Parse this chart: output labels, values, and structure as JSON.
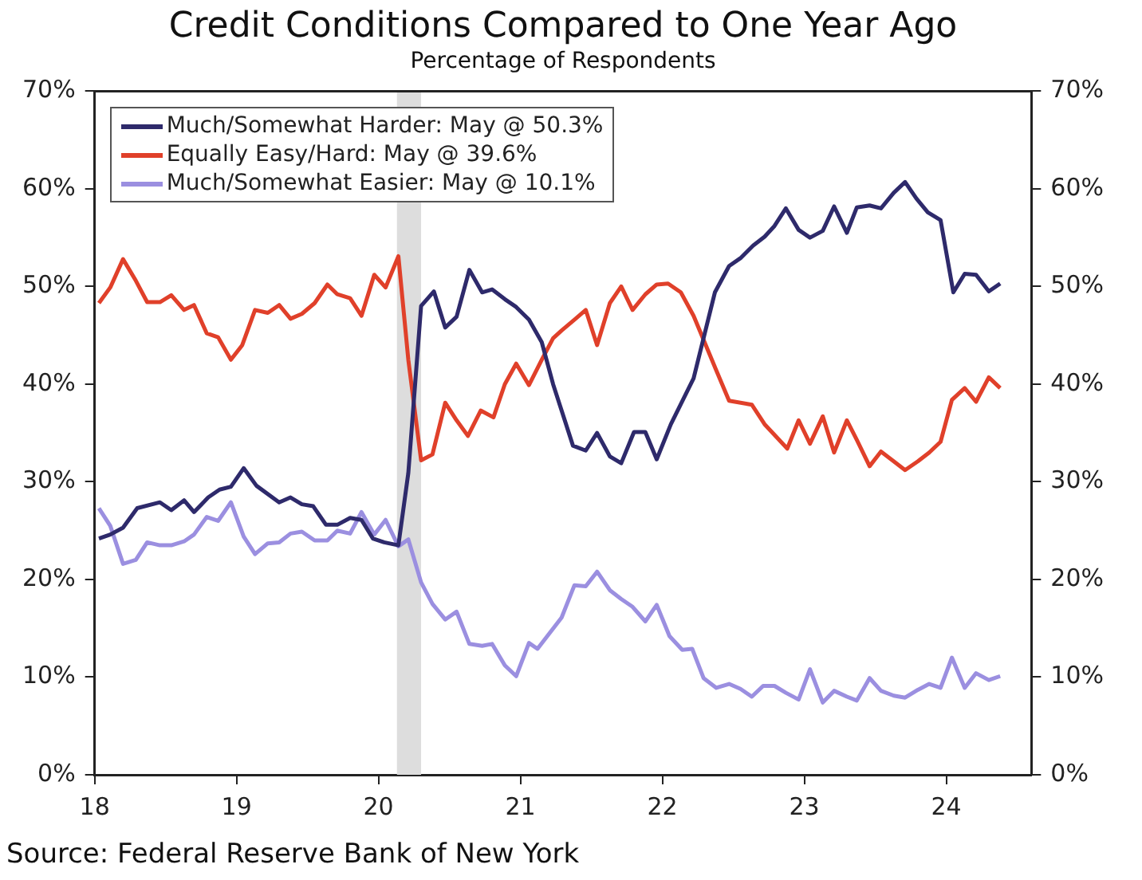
{
  "chart_data": {
    "type": "line",
    "title": "Credit Conditions Compared to One Year Ago",
    "subtitle": "Percentage of Respondents",
    "annotations": [
      "Source: Federal Reserve Bank of New York"
    ],
    "xlim": [
      18,
      24.6
    ],
    "xticks": [
      18,
      19,
      20,
      21,
      22,
      23,
      24
    ],
    "ylim": [
      0,
      70
    ],
    "yticks": [
      {
        "value": 0,
        "label": "0%"
      },
      {
        "value": 10,
        "label": "10%"
      },
      {
        "value": 20,
        "label": "20%"
      },
      {
        "value": 30,
        "label": "30%"
      },
      {
        "value": 40,
        "label": "40%"
      },
      {
        "value": 50,
        "label": "50%"
      },
      {
        "value": 60,
        "label": "60%"
      },
      {
        "value": 70,
        "label": "70%"
      }
    ],
    "y2lim": [
      0,
      70
    ],
    "y2ticks": [
      {
        "value": 0,
        "label": "0%"
      },
      {
        "value": 10,
        "label": "10%"
      },
      {
        "value": 20,
        "label": "20%"
      },
      {
        "value": 30,
        "label": "30%"
      },
      {
        "value": 40,
        "label": "40%"
      },
      {
        "value": 50,
        "label": "50%"
      },
      {
        "value": 60,
        "label": "60%"
      },
      {
        "value": 70,
        "label": "70%"
      }
    ],
    "grid": false,
    "legend": "top left",
    "marker": "none",
    "line_style": "solid",
    "bands": [
      {
        "axis": "x",
        "from": 20.13,
        "to": 20.3,
        "color": "#dddddd"
      }
    ],
    "series": [
      {
        "name": "Much/Somewhat Harder: May @ 50.3%",
        "color": "#2e2a6b",
        "x": [
          18.03,
          18.11,
          18.2,
          18.3,
          18.46,
          18.54,
          18.63,
          18.7,
          18.8,
          18.88,
          18.96,
          19.05,
          19.14,
          19.3,
          19.38,
          19.46,
          19.54,
          19.63,
          19.71,
          19.8,
          19.88,
          19.96,
          20.04,
          20.14,
          20.21,
          20.3,
          20.39,
          20.47,
          20.55,
          20.64,
          20.73,
          20.8,
          20.89,
          20.97,
          21.06,
          21.15,
          21.23,
          21.37,
          21.46,
          21.54,
          21.63,
          21.71,
          21.8,
          21.88,
          21.96,
          22.06,
          22.22,
          22.37,
          22.47,
          22.55,
          22.64,
          22.72,
          22.79,
          22.87,
          22.96,
          23.04,
          23.13,
          23.21,
          23.3,
          23.37,
          23.46,
          23.54,
          23.63,
          23.71,
          23.79,
          23.87,
          23.96,
          24.05,
          24.13,
          24.21,
          24.3,
          24.38
        ],
        "values": [
          24.2,
          24.6,
          25.3,
          27.3,
          27.9,
          27.1,
          28.1,
          26.9,
          28.4,
          29.2,
          29.5,
          31.4,
          29.6,
          27.9,
          28.4,
          27.7,
          27.5,
          25.6,
          25.6,
          26.3,
          26.1,
          24.2,
          23.8,
          23.5,
          30.9,
          48.0,
          49.5,
          45.8,
          46.9,
          51.7,
          49.4,
          49.7,
          48.7,
          47.9,
          46.6,
          44.3,
          40.0,
          33.7,
          33.2,
          35.0,
          32.6,
          31.9,
          35.1,
          35.1,
          32.3,
          35.9,
          40.6,
          49.4,
          52.1,
          52.9,
          54.2,
          55.1,
          56.2,
          58.0,
          55.8,
          55.0,
          55.7,
          58.2,
          55.5,
          58.1,
          58.3,
          58.0,
          59.6,
          60.7,
          59.0,
          57.6,
          56.8,
          49.4,
          51.3,
          51.2,
          49.5,
          50.3
        ]
      },
      {
        "name": "Equally Easy/Hard: May @ 39.6%",
        "color": "#e0402a",
        "x": [
          18.03,
          18.11,
          18.2,
          18.29,
          18.37,
          18.46,
          18.54,
          18.63,
          18.7,
          18.79,
          18.87,
          18.96,
          19.04,
          19.13,
          19.22,
          19.3,
          19.38,
          19.46,
          19.55,
          19.64,
          19.71,
          19.8,
          19.88,
          19.97,
          20.05,
          20.14,
          20.21,
          20.3,
          20.38,
          20.47,
          20.55,
          20.63,
          20.72,
          20.81,
          20.89,
          20.97,
          21.06,
          21.15,
          21.23,
          21.29,
          21.38,
          21.46,
          21.54,
          21.63,
          21.71,
          21.79,
          21.88,
          21.96,
          22.04,
          22.13,
          22.22,
          22.38,
          22.47,
          22.63,
          22.72,
          22.88,
          22.96,
          23.04,
          23.13,
          23.21,
          23.3,
          23.37,
          23.46,
          23.54,
          23.63,
          23.71,
          23.8,
          23.88,
          23.96,
          24.04,
          24.13,
          24.21,
          24.3,
          24.38
        ],
        "values": [
          48.3,
          49.9,
          52.8,
          50.6,
          48.4,
          48.4,
          49.1,
          47.6,
          48.1,
          45.2,
          44.8,
          42.5,
          44.0,
          47.6,
          47.3,
          48.1,
          46.7,
          47.2,
          48.3,
          50.2,
          49.2,
          48.8,
          47.0,
          51.2,
          49.9,
          53.1,
          42.5,
          32.2,
          32.8,
          38.1,
          36.3,
          34.7,
          37.3,
          36.6,
          40.0,
          42.1,
          39.9,
          42.5,
          44.7,
          45.5,
          46.6,
          47.6,
          44.0,
          48.3,
          50.0,
          47.6,
          49.2,
          50.2,
          50.3,
          49.4,
          47.0,
          41.4,
          38.3,
          37.9,
          35.9,
          33.4,
          36.3,
          33.9,
          36.7,
          33.0,
          36.3,
          34.3,
          31.6,
          33.1,
          32.1,
          31.2,
          32.1,
          33.0,
          34.1,
          38.4,
          39.6,
          38.2,
          40.7,
          39.6
        ]
      },
      {
        "name": "Much/Somewhat Easier: May @ 10.1%",
        "color": "#9b8fe0",
        "x": [
          18.03,
          18.11,
          18.2,
          18.29,
          18.37,
          18.46,
          18.54,
          18.63,
          18.7,
          18.79,
          18.87,
          18.96,
          19.05,
          19.13,
          19.22,
          19.3,
          19.38,
          19.46,
          19.55,
          19.64,
          19.71,
          19.8,
          19.88,
          19.97,
          20.05,
          20.14,
          20.21,
          20.3,
          20.38,
          20.47,
          20.55,
          20.64,
          20.73,
          20.8,
          20.89,
          20.97,
          21.06,
          21.12,
          21.29,
          21.38,
          21.46,
          21.54,
          21.63,
          21.71,
          21.79,
          21.88,
          21.96,
          22.05,
          22.14,
          22.21,
          22.29,
          22.38,
          22.47,
          22.55,
          22.63,
          22.71,
          22.79,
          22.87,
          22.96,
          23.04,
          23.13,
          23.21,
          23.3,
          23.37,
          23.46,
          23.54,
          23.63,
          23.71,
          23.8,
          23.88,
          23.96,
          24.04,
          24.13,
          24.21,
          24.3,
          24.38
        ],
        "values": [
          27.3,
          25.5,
          21.6,
          22.0,
          23.8,
          23.5,
          23.5,
          23.9,
          24.6,
          26.4,
          26.0,
          27.9,
          24.4,
          22.6,
          23.7,
          23.8,
          24.7,
          24.9,
          24.0,
          24.0,
          25.0,
          24.7,
          26.9,
          24.6,
          26.1,
          23.4,
          24.1,
          19.7,
          17.5,
          15.9,
          16.7,
          13.4,
          13.2,
          13.4,
          11.2,
          10.1,
          13.5,
          12.9,
          16.1,
          19.4,
          19.3,
          20.8,
          18.9,
          18.0,
          17.2,
          15.7,
          17.4,
          14.2,
          12.8,
          12.9,
          9.9,
          8.9,
          9.3,
          8.8,
          8.0,
          9.1,
          9.1,
          8.4,
          7.7,
          10.8,
          7.4,
          8.6,
          8.0,
          7.6,
          9.9,
          8.6,
          8.1,
          7.9,
          8.7,
          9.3,
          8.9,
          12.0,
          8.9,
          10.4,
          9.7,
          10.1
        ]
      }
    ]
  }
}
